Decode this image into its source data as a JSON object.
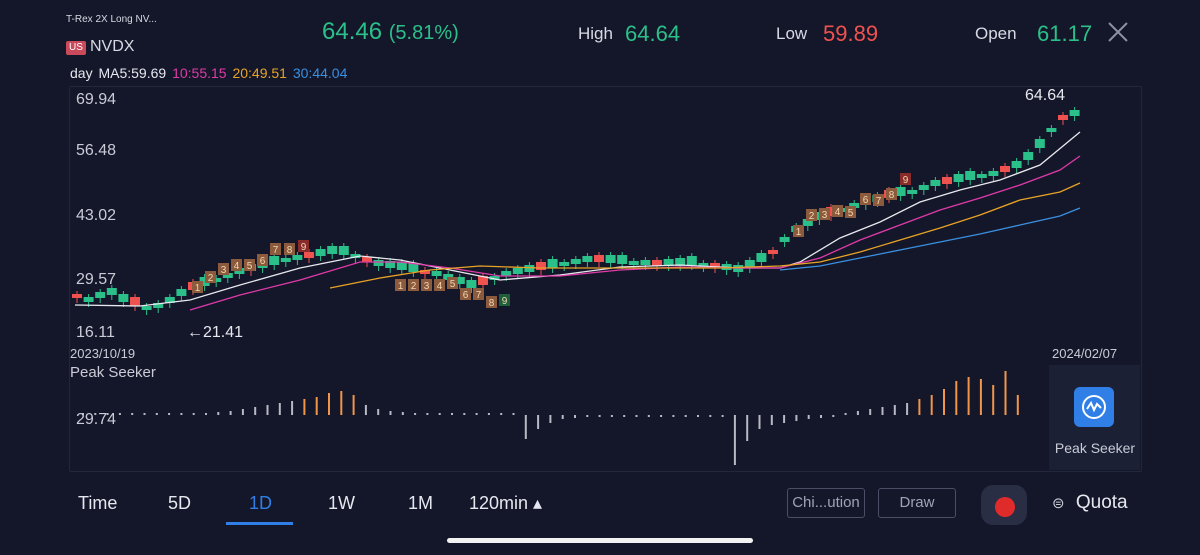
{
  "header": {
    "instrument_name": "T-Rex 2X Long NV...",
    "market_badge": "US",
    "ticker": "NVDX",
    "price": "64.46",
    "change_pct": "(5.81%)",
    "high_label": "High",
    "high_value": "64.64",
    "low_label": "Low",
    "low_value": "59.89",
    "open_label": "Open",
    "open_value": "61.17",
    "close_icon": "close-x-icon"
  },
  "ma": {
    "period": "day",
    "ma5": "MA5:59.69",
    "ma10": "10:55.15",
    "ma20": "20:49.51",
    "ma30": "30:44.04",
    "colors": {
      "ma5": "#e8e8ee",
      "ma10": "#e03aa8",
      "ma20": "#e8a327",
      "ma30": "#3a8fe0"
    }
  },
  "chart": {
    "y_labels": [
      "69.94",
      "56.48",
      "43.02",
      "29.57",
      "16.11"
    ],
    "high_marker": "64.64",
    "low_marker": "←21.41",
    "start_date": "2023/10/19",
    "end_date": "2024/02/07",
    "indicator_name": "Peak Seeker",
    "indicator_value": "29.74",
    "colors": {
      "up": "#2bc08a",
      "down": "#f0524f",
      "bar_orange": "#f0954a",
      "bar_gray": "#b7bac4"
    }
  },
  "side_panel": {
    "icon": "peak-seeker-icon",
    "label": "Peak Seeker"
  },
  "tabs": [
    {
      "label": "Time"
    },
    {
      "label": "5D"
    },
    {
      "label": "1D",
      "active": true
    },
    {
      "label": "1W"
    },
    {
      "label": "1M"
    },
    {
      "label": "120min ▴"
    }
  ],
  "toolbar": {
    "chip_button": "Chi...ution",
    "draw_button": "Draw",
    "quota_label": "Quota",
    "quota_icon": "quota-icon"
  }
}
